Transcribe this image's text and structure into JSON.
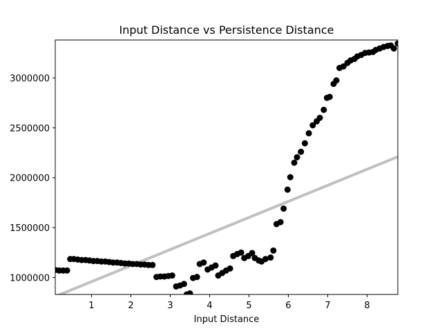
{
  "chart_data": {
    "type": "scatter",
    "title": "Input Distance vs Persistence Distance",
    "xlabel": "Input Distance",
    "ylabel": "",
    "xlim": [
      0.08,
      8.78
    ],
    "ylim": [
      830000,
      3380000
    ],
    "xticks": [
      1,
      2,
      3,
      4,
      5,
      6,
      7,
      8
    ],
    "yticks": [
      1000000,
      1500000,
      2000000,
      2500000,
      3000000
    ],
    "xtick_labels": [
      "1",
      "2",
      "3",
      "4",
      "5",
      "6",
      "7",
      "8"
    ],
    "ytick_labels": [
      "1000000",
      "1500000",
      "2000000",
      "2500000",
      "3000000"
    ],
    "grid": false,
    "point_color": "#000000",
    "fit_line_color": "#c0c0c0",
    "fit_line": {
      "x": [
        0.08,
        8.78
      ],
      "y": [
        810000,
        2210000
      ]
    },
    "points": [
      [
        0.08,
        1075000
      ],
      [
        0.18,
        1070000
      ],
      [
        0.28,
        1070000
      ],
      [
        0.38,
        1070000
      ],
      [
        0.46,
        1185000
      ],
      [
        0.55,
        1185000
      ],
      [
        0.65,
        1180000
      ],
      [
        0.75,
        1175000
      ],
      [
        0.85,
        1175000
      ],
      [
        0.95,
        1170000
      ],
      [
        1.05,
        1165000
      ],
      [
        1.15,
        1165000
      ],
      [
        1.25,
        1160000
      ],
      [
        1.35,
        1160000
      ],
      [
        1.45,
        1155000
      ],
      [
        1.55,
        1150000
      ],
      [
        1.65,
        1150000
      ],
      [
        1.75,
        1145000
      ],
      [
        1.85,
        1140000
      ],
      [
        1.95,
        1140000
      ],
      [
        2.05,
        1135000
      ],
      [
        2.15,
        1135000
      ],
      [
        2.25,
        1130000
      ],
      [
        2.35,
        1130000
      ],
      [
        2.45,
        1125000
      ],
      [
        2.55,
        1125000
      ],
      [
        2.65,
        1005000
      ],
      [
        2.75,
        1010000
      ],
      [
        2.85,
        1010000
      ],
      [
        2.95,
        1015000
      ],
      [
        3.05,
        1020000
      ],
      [
        3.15,
        910000
      ],
      [
        3.25,
        920000
      ],
      [
        3.35,
        935000
      ],
      [
        3.42,
        830000
      ],
      [
        3.5,
        840000
      ],
      [
        3.58,
        995000
      ],
      [
        3.68,
        1005000
      ],
      [
        3.75,
        1135000
      ],
      [
        3.85,
        1150000
      ],
      [
        3.95,
        1080000
      ],
      [
        4.05,
        1100000
      ],
      [
        4.15,
        1120000
      ],
      [
        4.22,
        1020000
      ],
      [
        4.32,
        1045000
      ],
      [
        4.42,
        1070000
      ],
      [
        4.52,
        1090000
      ],
      [
        4.6,
        1215000
      ],
      [
        4.7,
        1235000
      ],
      [
        4.8,
        1250000
      ],
      [
        4.88,
        1195000
      ],
      [
        4.98,
        1215000
      ],
      [
        5.08,
        1245000
      ],
      [
        5.15,
        1195000
      ],
      [
        5.25,
        1170000
      ],
      [
        5.32,
        1160000
      ],
      [
        5.42,
        1185000
      ],
      [
        5.55,
        1200000
      ],
      [
        5.62,
        1270000
      ],
      [
        5.7,
        1535000
      ],
      [
        5.8,
        1555000
      ],
      [
        5.88,
        1690000
      ],
      [
        5.98,
        1880000
      ],
      [
        6.05,
        2005000
      ],
      [
        6.15,
        2150000
      ],
      [
        6.22,
        2205000
      ],
      [
        6.32,
        2260000
      ],
      [
        6.42,
        2345000
      ],
      [
        6.52,
        2445000
      ],
      [
        6.62,
        2525000
      ],
      [
        6.72,
        2565000
      ],
      [
        6.8,
        2600000
      ],
      [
        6.9,
        2680000
      ],
      [
        6.98,
        2800000
      ],
      [
        7.05,
        2810000
      ],
      [
        7.15,
        2940000
      ],
      [
        7.22,
        2975000
      ],
      [
        7.3,
        3100000
      ],
      [
        7.4,
        3115000
      ],
      [
        7.5,
        3150000
      ],
      [
        7.58,
        3175000
      ],
      [
        7.68,
        3190000
      ],
      [
        7.75,
        3215000
      ],
      [
        7.85,
        3230000
      ],
      [
        7.95,
        3250000
      ],
      [
        8.05,
        3255000
      ],
      [
        8.15,
        3260000
      ],
      [
        8.22,
        3280000
      ],
      [
        8.32,
        3295000
      ],
      [
        8.42,
        3310000
      ],
      [
        8.52,
        3320000
      ],
      [
        8.6,
        3325000
      ],
      [
        8.68,
        3295000
      ],
      [
        8.78,
        3345000
      ]
    ]
  }
}
